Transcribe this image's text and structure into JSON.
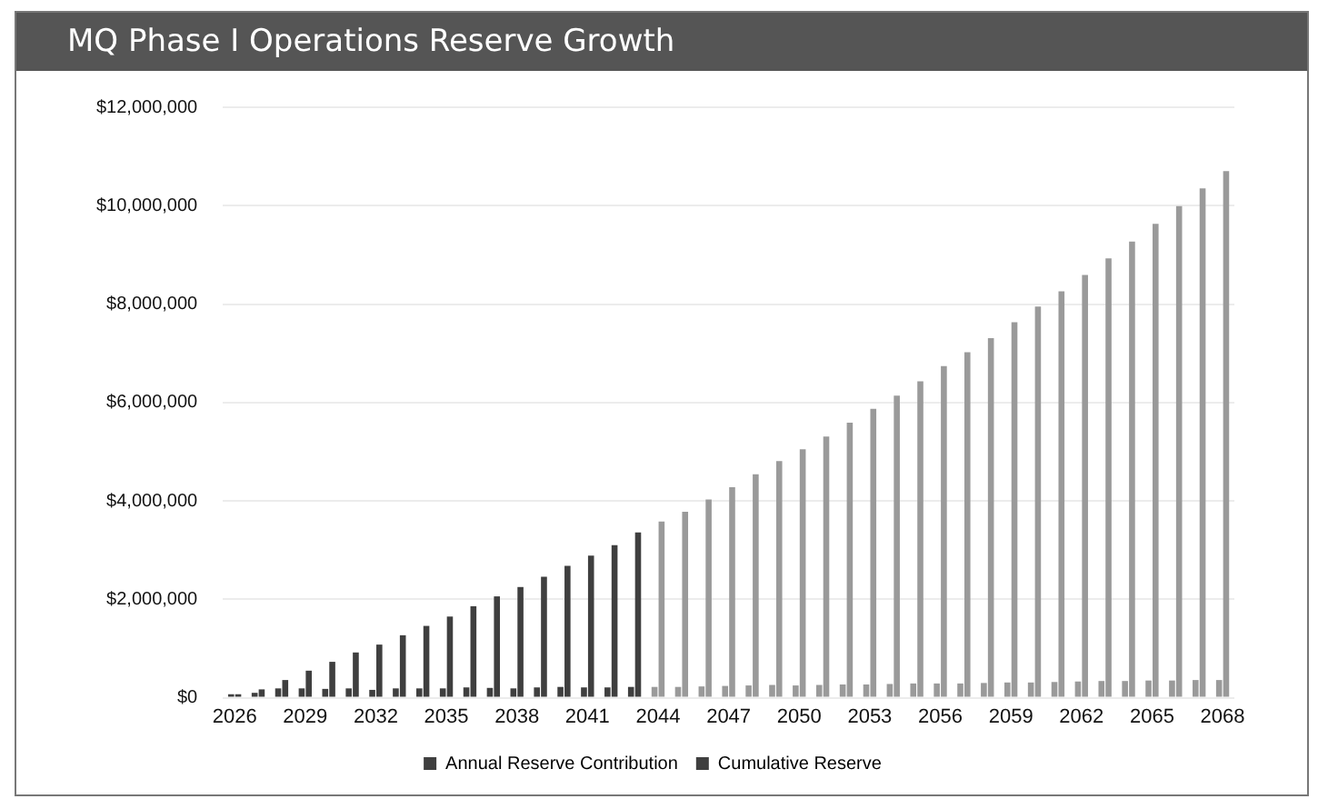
{
  "chart_data": {
    "type": "bar",
    "title": "MQ Phase I Operations Reserve Growth",
    "categories": [
      "2026",
      null,
      null,
      "2029",
      null,
      null,
      "2032",
      null,
      null,
      "2035",
      null,
      null,
      "2038",
      null,
      null,
      "2041",
      null,
      null,
      "2044",
      null,
      null,
      "2047",
      null,
      null,
      "2050",
      null,
      null,
      "2053",
      null,
      null,
      "2056",
      null,
      null,
      "2059",
      null,
      null,
      "2062",
      null,
      null,
      "2065",
      null,
      null,
      "2068"
    ],
    "series": [
      {
        "name": "Annual Reserve Contribution",
        "color": "#3f3f3f",
        "colors": [
          "#3f3f3f",
          "#3f3f3f",
          "#3f3f3f",
          "#3f3f3f",
          "#3f3f3f",
          "#3f3f3f",
          "#3f3f3f",
          "#3f3f3f",
          "#3f3f3f",
          "#3f3f3f",
          "#3f3f3f",
          "#3f3f3f",
          "#3f3f3f",
          "#3f3f3f",
          "#3f3f3f",
          "#3f3f3f",
          "#3f3f3f",
          "#3f3f3f",
          "#9a9a9a",
          "#9a9a9a",
          "#9a9a9a",
          "#9a9a9a",
          "#9a9a9a",
          "#9a9a9a",
          "#9a9a9a",
          "#9a9a9a",
          "#9a9a9a",
          "#9a9a9a",
          "#9a9a9a",
          "#9a9a9a",
          "#9a9a9a",
          "#9a9a9a",
          "#9a9a9a",
          "#9a9a9a",
          "#9a9a9a",
          "#9a9a9a",
          "#9a9a9a",
          "#9a9a9a",
          "#9a9a9a",
          "#9a9a9a",
          "#9a9a9a",
          "#9a9a9a",
          "#9a9a9a"
        ],
        "values": [
          70000,
          100000,
          190000,
          190000,
          180000,
          190000,
          160000,
          190000,
          190000,
          190000,
          210000,
          200000,
          190000,
          210000,
          220000,
          210000,
          210000,
          220000,
          220000,
          220000,
          230000,
          240000,
          250000,
          260000,
          250000,
          260000,
          270000,
          270000,
          280000,
          290000,
          290000,
          290000,
          300000,
          310000,
          310000,
          320000,
          330000,
          340000,
          340000,
          350000,
          350000,
          360000,
          360000
        ]
      },
      {
        "name": "Cumulative Reserve",
        "color": "#3f3f3f",
        "colors": [
          "#3f3f3f",
          "#3f3f3f",
          "#3f3f3f",
          "#3f3f3f",
          "#3f3f3f",
          "#3f3f3f",
          "#3f3f3f",
          "#3f3f3f",
          "#3f3f3f",
          "#3f3f3f",
          "#3f3f3f",
          "#3f3f3f",
          "#3f3f3f",
          "#3f3f3f",
          "#3f3f3f",
          "#3f3f3f",
          "#3f3f3f",
          "#3f3f3f",
          "#9a9a9a",
          "#9a9a9a",
          "#9a9a9a",
          "#9a9a9a",
          "#9a9a9a",
          "#9a9a9a",
          "#9a9a9a",
          "#9a9a9a",
          "#9a9a9a",
          "#9a9a9a",
          "#9a9a9a",
          "#9a9a9a",
          "#9a9a9a",
          "#9a9a9a",
          "#9a9a9a",
          "#9a9a9a",
          "#9a9a9a",
          "#9a9a9a",
          "#9a9a9a",
          "#9a9a9a",
          "#9a9a9a",
          "#9a9a9a",
          "#9a9a9a",
          "#9a9a9a",
          "#9a9a9a"
        ],
        "values": [
          70000,
          170000,
          360000,
          550000,
          730000,
          920000,
          1080000,
          1270000,
          1460000,
          1650000,
          1860000,
          2060000,
          2250000,
          2460000,
          2680000,
          2890000,
          3100000,
          3360000,
          3580000,
          3780000,
          4030000,
          4280000,
          4540000,
          4810000,
          5050000,
          5310000,
          5590000,
          5870000,
          6140000,
          6430000,
          6740000,
          7020000,
          7310000,
          7630000,
          7950000,
          8260000,
          8590000,
          8930000,
          9270000,
          9630000,
          9990000,
          10350000,
          10700000
        ]
      }
    ],
    "ylim": [
      0,
      12000000
    ],
    "yticks": [
      {
        "value": 0,
        "label": "$0"
      },
      {
        "value": 2000000,
        "label": "$2,000,000"
      },
      {
        "value": 4000000,
        "label": "$4,000,000"
      },
      {
        "value": 6000000,
        "label": "$6,000,000"
      },
      {
        "value": 8000000,
        "label": "$8,000,000"
      },
      {
        "value": 10000000,
        "label": "$10,000,000"
      },
      {
        "value": 12000000,
        "label": "$12,000,000"
      }
    ],
    "grid": "y",
    "legend": "bottom"
  }
}
